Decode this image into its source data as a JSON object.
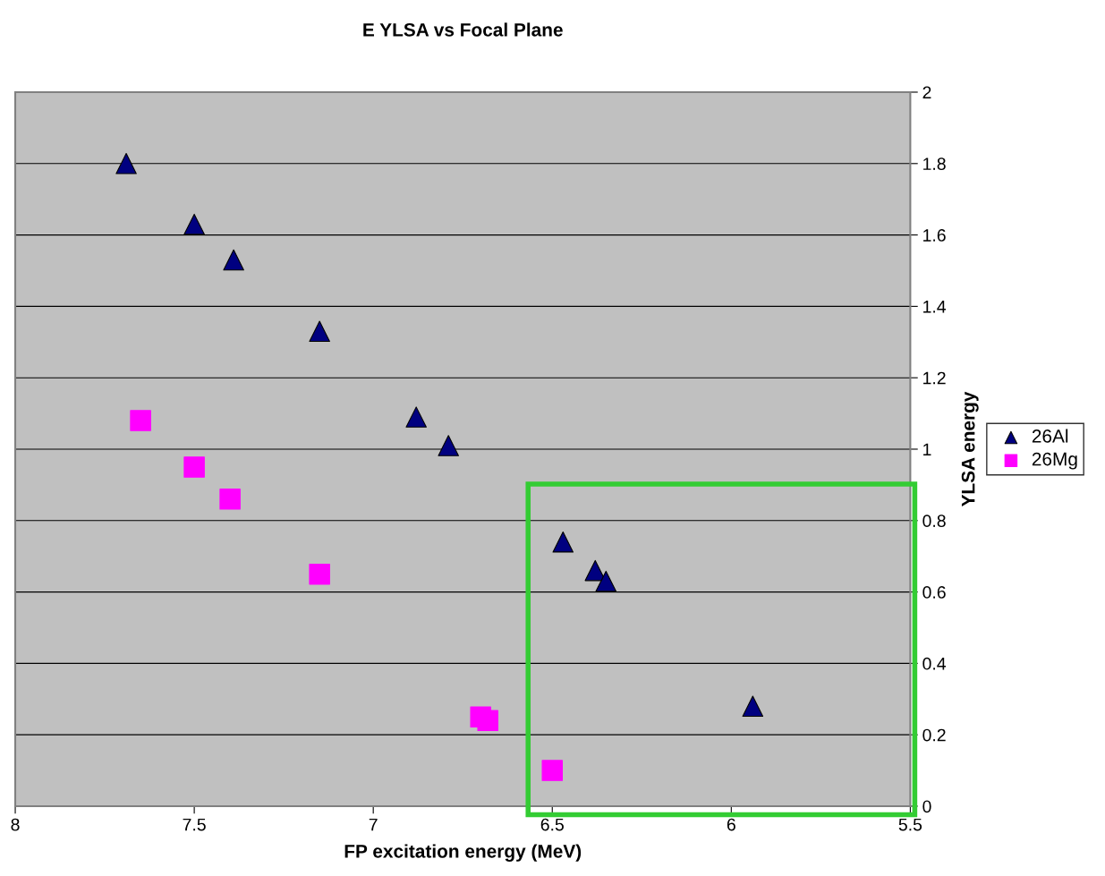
{
  "chart_data": {
    "type": "scatter",
    "title": "E YLSA vs Focal Plane",
    "xlabel": "FP excitation energy (MeV)",
    "ylabel": "YLSA energy",
    "xlim": [
      8,
      5.5
    ],
    "xticks": [
      8,
      7.5,
      7,
      6.5,
      6,
      5.5
    ],
    "ylim": [
      0,
      2
    ],
    "yticks": [
      0,
      0.2,
      0.4,
      0.6,
      0.8,
      1,
      1.2,
      1.4,
      1.6,
      1.8,
      2
    ],
    "grid": "y",
    "legend": "right",
    "series": [
      {
        "name": "26Al",
        "color": "#000080",
        "marker": "triangle",
        "x": [
          7.69,
          7.5,
          7.39,
          7.15,
          6.88,
          6.79,
          6.47,
          6.38,
          6.35,
          5.94
        ],
        "values": [
          1.8,
          1.63,
          1.53,
          1.33,
          1.09,
          1.01,
          0.74,
          0.66,
          0.63,
          0.28
        ]
      },
      {
        "name": "26Mg",
        "color": "#ff00ff",
        "marker": "square",
        "x": [
          7.65,
          7.5,
          7.4,
          7.15,
          6.7,
          6.68,
          6.5
        ],
        "values": [
          1.08,
          0.95,
          0.86,
          0.65,
          0.25,
          0.24,
          0.1
        ]
      }
    ]
  }
}
